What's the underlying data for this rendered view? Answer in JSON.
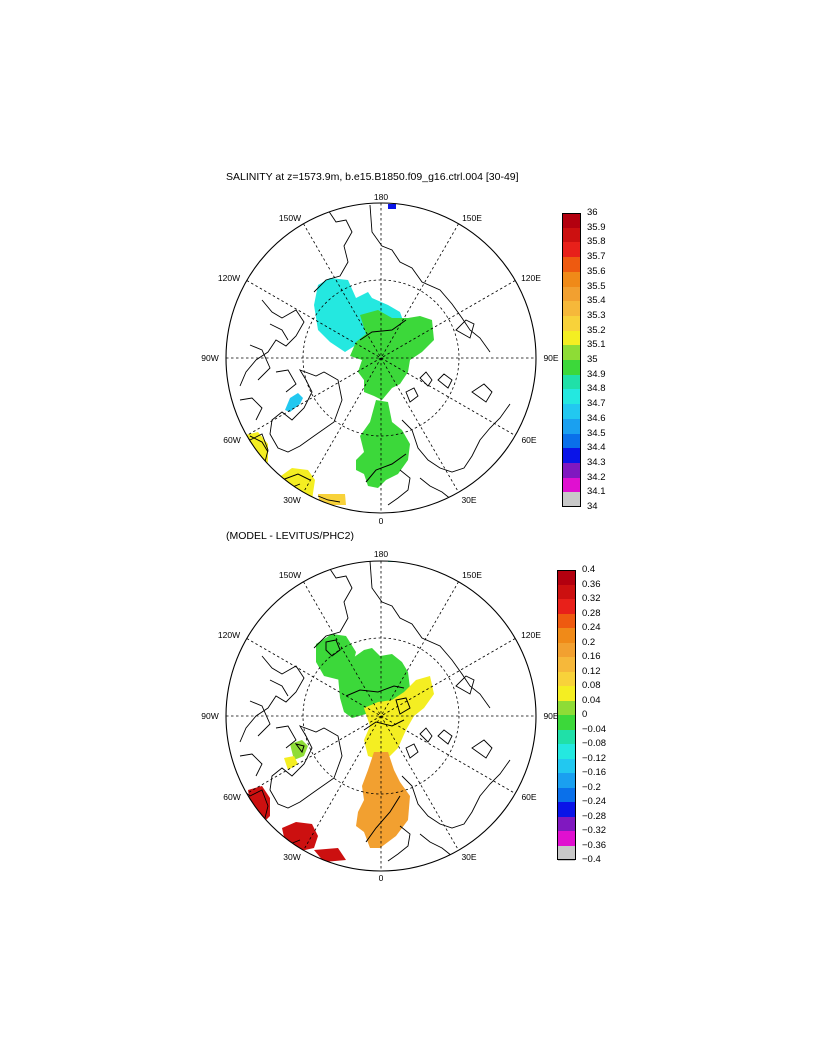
{
  "panels": [
    {
      "title": "SALINITY at z=1573.9m, b.e15.B1850.f09_g16.ctrl.004 [30-49]",
      "lon_labels": {
        "top": "180",
        "upper_left": "150W",
        "upper_right": "150E",
        "mid_upper_left": "120W",
        "mid_upper_right": "120E",
        "left": "90W",
        "right": "90E",
        "mid_lower_left": "60W",
        "mid_lower_right": "60E",
        "lower_left": "30W",
        "lower_right": "30E",
        "bottom": "0"
      },
      "colorbar": {
        "ticks": [
          "36",
          "35.9",
          "35.8",
          "35.7",
          "35.6",
          "35.5",
          "35.4",
          "35.3",
          "35.2",
          "35.1",
          "35",
          "34.9",
          "34.8",
          "34.7",
          "34.6",
          "34.5",
          "34.4",
          "34.3",
          "34.2",
          "34.1",
          "34"
        ],
        "colors": [
          "#b3000f",
          "#cc1010",
          "#e8201a",
          "#ee5a10",
          "#f08a18",
          "#f2a030",
          "#f6b83a",
          "#f8d23a",
          "#f4ee22",
          "#8edc36",
          "#3cd83a",
          "#20e0a8",
          "#24e8e0",
          "#22c8f0",
          "#1aa0f0",
          "#0a70ea",
          "#0a14e8",
          "#8018c0",
          "#e010d0",
          "#c8c8c8",
          "#6e6e6e"
        ]
      },
      "regions": [
        {
          "name": "central-arctic",
          "color": "#3cd83a"
        },
        {
          "name": "canada-basin",
          "color": "#24e8e0"
        },
        {
          "name": "fram-nordic",
          "color": "#3cd83a"
        },
        {
          "name": "baffin",
          "color": "#22c8f0"
        },
        {
          "name": "labrador",
          "color": "#f4ee22"
        },
        {
          "name": "north-atlantic",
          "color": "#f4ee22"
        },
        {
          "name": "atl-bottom",
          "color": "#f8d23a"
        },
        {
          "name": "bering-speck",
          "color": "#0a14e8"
        }
      ]
    },
    {
      "title": "(MODEL - LEVITUS/PHC2)",
      "lon_labels": {
        "top": "180",
        "upper_left": "150W",
        "upper_right": "150E",
        "mid_upper_left": "120W",
        "mid_upper_right": "120E",
        "left": "90W",
        "right": "90E",
        "mid_lower_left": "60W",
        "mid_lower_right": "60E",
        "lower_left": "30W",
        "lower_right": "30E",
        "bottom": "0"
      },
      "colorbar": {
        "ticks": [
          "0.4",
          "0.36",
          "0.32",
          "0.28",
          "0.24",
          "0.2",
          "0.16",
          "0.12",
          "0.08",
          "0.04",
          "0",
          "−0.04",
          "−0.08",
          "−0.12",
          "−0.16",
          "−0.2",
          "−0.24",
          "−0.28",
          "−0.32",
          "−0.36",
          "−0.4"
        ],
        "colors": [
          "#b3000f",
          "#cc1010",
          "#e8201a",
          "#ee5a10",
          "#f08a18",
          "#f2a030",
          "#f6b83a",
          "#f8d23a",
          "#f4ee22",
          "#8edc36",
          "#3cd83a",
          "#20e0a8",
          "#24e8e0",
          "#22c8f0",
          "#1aa0f0",
          "#0a70ea",
          "#0a14e8",
          "#8018c0",
          "#e010d0",
          "#c8c8c8",
          "#6e6e6e"
        ]
      },
      "regions": [
        {
          "name": "canada-basin",
          "color": "#3cd83a"
        },
        {
          "name": "central-arctic",
          "color": "#3cd83a"
        },
        {
          "name": "eurasian-basin",
          "color": "#f4ee22"
        },
        {
          "name": "fram-nordic",
          "color": "#f2a030"
        },
        {
          "name": "baffin",
          "color": "#8edc36"
        },
        {
          "name": "baffin-yellow",
          "color": "#f4ee22"
        },
        {
          "name": "labrador",
          "color": "#cc1010"
        },
        {
          "name": "north-atlantic",
          "color": "#cc1010"
        },
        {
          "name": "atl-bottom",
          "color": "#cc1010"
        },
        {
          "name": "bering-speck",
          "color": "#20e0a8"
        }
      ]
    }
  ]
}
